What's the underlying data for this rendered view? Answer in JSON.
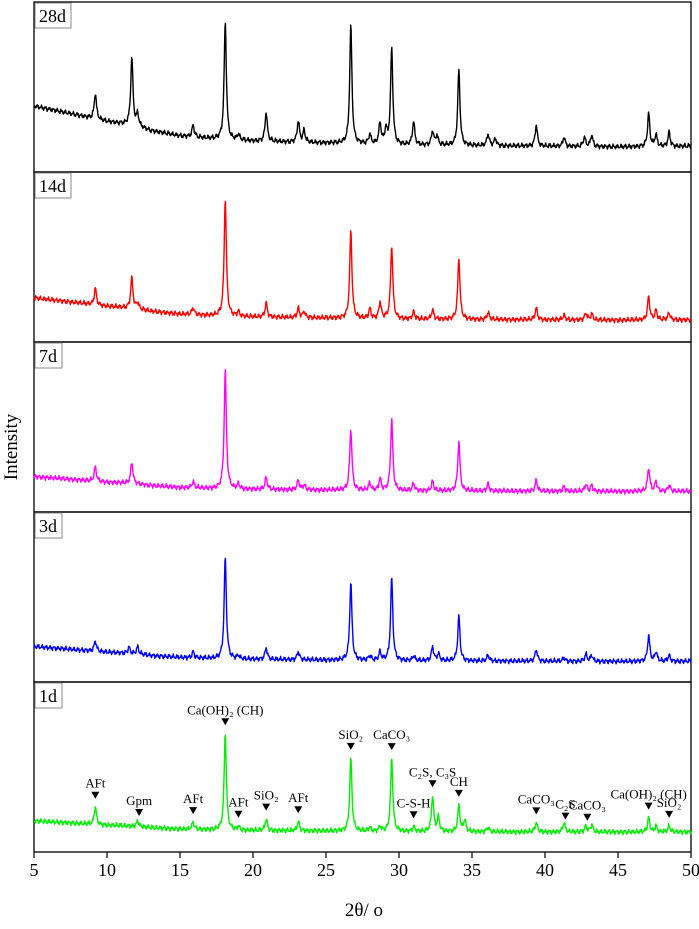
{
  "chart_data": {
    "type": "line",
    "xlabel": "2θ/ o",
    "ylabel": "Intensity",
    "xlim": [
      5,
      50
    ],
    "xticks": [
      5,
      10,
      15,
      20,
      25,
      30,
      35,
      40,
      45,
      50
    ],
    "grid": false,
    "baseline_shape": {
      "x": [
        5,
        8,
        10,
        11,
        12,
        13,
        15,
        18,
        20,
        25,
        30,
        35,
        40,
        45,
        50
      ],
      "b": [
        0.74,
        0.6,
        0.5,
        0.47,
        0.43,
        0.36,
        0.28,
        0.22,
        0.2,
        0.17,
        0.14,
        0.13,
        0.12,
        0.11,
        0.12
      ]
    },
    "series": [
      {
        "name": "28d",
        "color": "#000000",
        "bg": 0.55,
        "peaks": [
          [
            9.2,
            0.22
          ],
          [
            11.7,
            0.58
          ],
          [
            12.1,
            0.1
          ],
          [
            15.9,
            0.1
          ],
          [
            18.1,
            1.0
          ],
          [
            19,
            0.05
          ],
          [
            20.9,
            0.25
          ],
          [
            23.1,
            0.18
          ],
          [
            23.5,
            0.1
          ],
          [
            26.7,
            1.0
          ],
          [
            28,
            0.08
          ],
          [
            28.7,
            0.18
          ],
          [
            29.1,
            0.12
          ],
          [
            29.5,
            0.82
          ],
          [
            31,
            0.2
          ],
          [
            32.3,
            0.12
          ],
          [
            32.6,
            0.08
          ],
          [
            34.1,
            0.64
          ],
          [
            36.1,
            0.1
          ],
          [
            36.6,
            0.06
          ],
          [
            39.4,
            0.18
          ],
          [
            41.3,
            0.08
          ],
          [
            42.7,
            0.08
          ],
          [
            43.2,
            0.1
          ],
          [
            47.1,
            0.28
          ],
          [
            47.6,
            0.1
          ],
          [
            48.5,
            0.12
          ]
        ]
      },
      {
        "name": "14d",
        "color": "#ff0000",
        "bg": 0.3,
        "peaks": [
          [
            9.2,
            0.14
          ],
          [
            11.7,
            0.26
          ],
          [
            12.1,
            0.05
          ],
          [
            15.9,
            0.06
          ],
          [
            18.1,
            1.0
          ],
          [
            19,
            0.04
          ],
          [
            20.9,
            0.12
          ],
          [
            23.1,
            0.08
          ],
          [
            23.5,
            0.05
          ],
          [
            26.7,
            0.74
          ],
          [
            28,
            0.08
          ],
          [
            28.7,
            0.14
          ],
          [
            29.5,
            0.62
          ],
          [
            31,
            0.06
          ],
          [
            32.3,
            0.08
          ],
          [
            34.1,
            0.52
          ],
          [
            36.1,
            0.06
          ],
          [
            39.4,
            0.1
          ],
          [
            41.3,
            0.04
          ],
          [
            42.8,
            0.06
          ],
          [
            43.2,
            0.05
          ],
          [
            47.1,
            0.2
          ],
          [
            47.6,
            0.08
          ],
          [
            48.5,
            0.06
          ]
        ]
      },
      {
        "name": "7d",
        "color": "#ff00ff",
        "bg": 0.2,
        "peaks": [
          [
            9.2,
            0.12
          ],
          [
            11.7,
            0.18
          ],
          [
            15.9,
            0.05
          ],
          [
            18.1,
            1.0
          ],
          [
            19,
            0.04
          ],
          [
            20.9,
            0.1
          ],
          [
            23.1,
            0.08
          ],
          [
            23.5,
            0.04
          ],
          [
            26.7,
            0.52
          ],
          [
            28,
            0.06
          ],
          [
            28.7,
            0.1
          ],
          [
            29.5,
            0.6
          ],
          [
            31,
            0.06
          ],
          [
            32.3,
            0.08
          ],
          [
            34.1,
            0.42
          ],
          [
            36.1,
            0.06
          ],
          [
            39.4,
            0.09
          ],
          [
            41.3,
            0.04
          ],
          [
            42.8,
            0.06
          ],
          [
            43.2,
            0.05
          ],
          [
            47.1,
            0.2
          ],
          [
            47.6,
            0.08
          ],
          [
            48.5,
            0.05
          ]
        ]
      },
      {
        "name": "3d",
        "color": "#0000ff",
        "bg": 0.2,
        "peaks": [
          [
            9.2,
            0.09
          ],
          [
            11.5,
            0.05
          ],
          [
            12.1,
            0.06
          ],
          [
            15.9,
            0.05
          ],
          [
            18.1,
            0.86
          ],
          [
            19,
            0.03
          ],
          [
            20.9,
            0.1
          ],
          [
            23.1,
            0.07
          ],
          [
            26.7,
            0.66
          ],
          [
            28,
            0.04
          ],
          [
            28.7,
            0.07
          ],
          [
            29.5,
            0.7
          ],
          [
            31,
            0.04
          ],
          [
            32.3,
            0.12
          ],
          [
            32.7,
            0.06
          ],
          [
            34.1,
            0.38
          ],
          [
            36.1,
            0.05
          ],
          [
            39.4,
            0.1
          ],
          [
            41.3,
            0.03
          ],
          [
            42.8,
            0.06
          ],
          [
            43.2,
            0.05
          ],
          [
            47.1,
            0.22
          ],
          [
            47.6,
            0.08
          ],
          [
            48.5,
            0.05
          ]
        ]
      },
      {
        "name": "1d",
        "color": "#00ee00",
        "bg": 0.15,
        "peaks": [
          [
            9.2,
            0.15
          ],
          [
            12.1,
            0.05
          ],
          [
            15.9,
            0.06
          ],
          [
            18.1,
            0.82
          ],
          [
            19,
            0.03
          ],
          [
            20.9,
            0.1
          ],
          [
            23.1,
            0.08
          ],
          [
            26.7,
            0.62
          ],
          [
            28,
            0.03
          ],
          [
            28.7,
            0.04
          ],
          [
            29.5,
            0.62
          ],
          [
            31,
            0.04
          ],
          [
            32.3,
            0.3
          ],
          [
            32.7,
            0.12
          ],
          [
            34.1,
            0.22
          ],
          [
            34.5,
            0.1
          ],
          [
            36.1,
            0.04
          ],
          [
            39.4,
            0.08
          ],
          [
            41.3,
            0.08
          ],
          [
            42.8,
            0.05
          ],
          [
            43.2,
            0.06
          ],
          [
            47.1,
            0.12
          ],
          [
            47.6,
            0.05
          ],
          [
            48.5,
            0.05
          ]
        ]
      }
    ],
    "annotations": [
      {
        "text": "AFt",
        "x": 9.2
      },
      {
        "text": "Gpm",
        "x": 12.2
      },
      {
        "text": "AFt",
        "x": 15.9
      },
      {
        "text": "Ca(OH)₂ (CH)",
        "x": 18.1
      },
      {
        "text": "AFt",
        "x": 19.0
      },
      {
        "text": "SiO₂",
        "x": 20.9
      },
      {
        "text": "AFt",
        "x": 23.1
      },
      {
        "text": "SiO₂",
        "x": 26.7
      },
      {
        "text": "CaCO₃",
        "x": 29.5
      },
      {
        "text": "C-S-H",
        "x": 31.0
      },
      {
        "text": "C₂S, C₃S",
        "x": 32.3
      },
      {
        "text": "CH",
        "x": 34.1
      },
      {
        "text": "CaCO₃",
        "x": 39.4
      },
      {
        "text": "C₂S",
        "x": 41.4
      },
      {
        "text": "CaCO₃",
        "x": 42.9
      },
      {
        "text": "Ca(OH)₂ (CH)",
        "x": 47.1
      },
      {
        "text": "SiO₂",
        "x": 48.5
      }
    ]
  }
}
